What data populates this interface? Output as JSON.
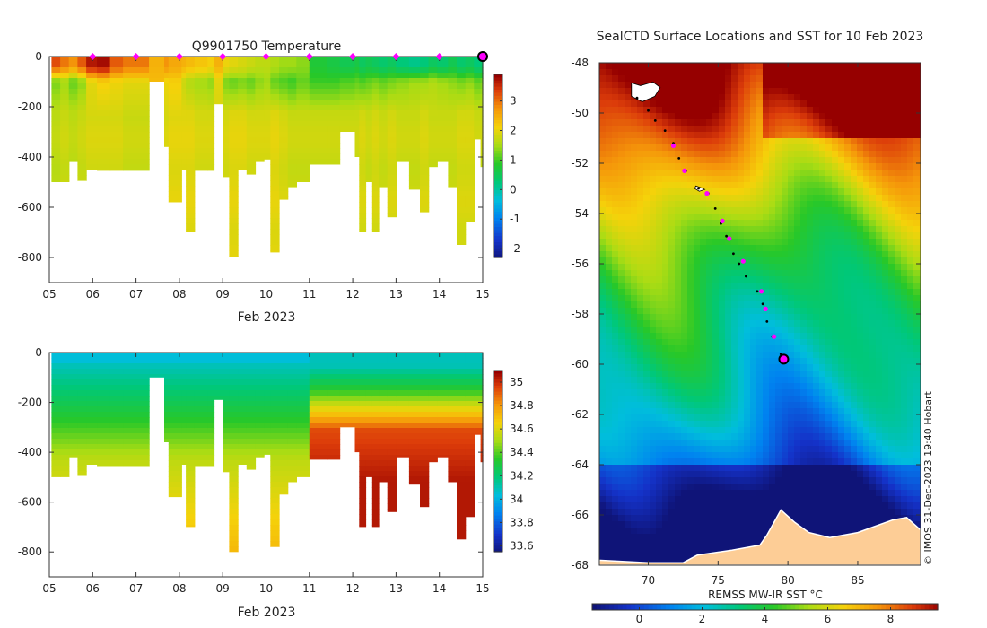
{
  "chart_data": [
    {
      "type": "heatmap",
      "panel": "temperature-section",
      "title": "Q9901750  Temperature",
      "xlabel": "Feb 2023",
      "ylabel": "",
      "x_ticks": [
        "05",
        "06",
        "07",
        "08",
        "09",
        "10",
        "11",
        "12",
        "13",
        "14",
        "15"
      ],
      "xlim": [
        5,
        15
      ],
      "y_ticks": [
        0,
        -200,
        -400,
        -600,
        -800
      ],
      "ylim": [
        -900,
        0
      ],
      "colorbar": {
        "min": -2.3,
        "max": 3.9,
        "ticks": [
          "3",
          "2",
          "1",
          "0",
          "-1",
          "-2"
        ],
        "tick_values": [
          3,
          2,
          1,
          0,
          -1,
          -2
        ]
      },
      "surface_markers_days": [
        6,
        7,
        8,
        9,
        10,
        11,
        12,
        13,
        14
      ],
      "final_marker_day": 15,
      "profiles": [
        {
          "day": 5.05,
          "maxdepth": 500,
          "top": 3.3,
          "upper": 1.3,
          "deep": 1.7
        },
        {
          "day": 5.25,
          "maxdepth": 500,
          "top": 3.0,
          "upper": 1.5,
          "deep": 1.8
        },
        {
          "day": 5.45,
          "maxdepth": 420,
          "top": 2.8,
          "upper": 1.2,
          "deep": 1.7
        },
        {
          "day": 5.65,
          "maxdepth": 495,
          "top": 3.2,
          "upper": 1.4,
          "deep": 1.8
        },
        {
          "day": 5.85,
          "maxdepth": 450,
          "top": 3.7,
          "upper": 2.0,
          "deep": 1.9
        },
        {
          "day": 6.1,
          "maxdepth": 455,
          "top": 3.8,
          "upper": 2.2,
          "deep": 1.9
        },
        {
          "day": 6.4,
          "maxdepth": 455,
          "top": 3.2,
          "upper": 2.1,
          "deep": 1.9
        },
        {
          "day": 6.7,
          "maxdepth": 455,
          "top": 3.0,
          "upper": 2.0,
          "deep": 1.8
        },
        {
          "day": 7.3,
          "maxdepth": 100,
          "top": 2.5,
          "upper": 2.4,
          "deep": 2.3
        },
        {
          "day": 7.65,
          "maxdepth": 360,
          "top": 2.8,
          "upper": 2.1,
          "deep": 1.9
        },
        {
          "day": 7.75,
          "maxdepth": 580,
          "top": 2.6,
          "upper": 2.2,
          "deep": 2.0
        },
        {
          "day": 8.05,
          "maxdepth": 450,
          "top": 2.5,
          "upper": 1.8,
          "deep": 2.0
        },
        {
          "day": 8.15,
          "maxdepth": 700,
          "top": 2.4,
          "upper": 1.6,
          "deep": 2.0
        },
        {
          "day": 8.35,
          "maxdepth": 455,
          "top": 2.3,
          "upper": 1.5,
          "deep": 1.9
        },
        {
          "day": 8.65,
          "maxdepth": 455,
          "top": 2.2,
          "upper": 1.4,
          "deep": 1.9
        },
        {
          "day": 8.8,
          "maxdepth": 190,
          "top": 2.5,
          "upper": 2.0,
          "deep": 1.9
        },
        {
          "day": 9.0,
          "maxdepth": 480,
          "top": 2.1,
          "upper": 1.3,
          "deep": 1.9
        },
        {
          "day": 9.15,
          "maxdepth": 800,
          "top": 2.0,
          "upper": 1.2,
          "deep": 2.0
        },
        {
          "day": 9.35,
          "maxdepth": 450,
          "top": 1.9,
          "upper": 1.3,
          "deep": 2.0
        },
        {
          "day": 9.55,
          "maxdepth": 470,
          "top": 1.8,
          "upper": 1.2,
          "deep": 1.9
        },
        {
          "day": 9.75,
          "maxdepth": 420,
          "top": 1.7,
          "upper": 1.4,
          "deep": 1.9
        },
        {
          "day": 9.95,
          "maxdepth": 410,
          "top": 1.7,
          "upper": 1.5,
          "deep": 1.9
        },
        {
          "day": 10.1,
          "maxdepth": 780,
          "top": 1.6,
          "upper": 1.2,
          "deep": 2.0
        },
        {
          "day": 10.3,
          "maxdepth": 570,
          "top": 1.5,
          "upper": 1.1,
          "deep": 1.9
        },
        {
          "day": 10.5,
          "maxdepth": 520,
          "top": 1.5,
          "upper": 1.0,
          "deep": 1.8
        },
        {
          "day": 10.7,
          "maxdepth": 500,
          "top": 1.4,
          "upper": 1.2,
          "deep": 1.8
        },
        {
          "day": 11.0,
          "maxdepth": 430,
          "top": 0.8,
          "upper": 1.0,
          "deep": 1.8
        },
        {
          "day": 11.4,
          "maxdepth": 430,
          "top": 0.7,
          "upper": 1.0,
          "deep": 1.8
        },
        {
          "day": 11.7,
          "maxdepth": 300,
          "top": 0.6,
          "upper": 1.1,
          "deep": 1.8
        },
        {
          "day": 12.05,
          "maxdepth": 400,
          "top": 0.7,
          "upper": 1.2,
          "deep": 1.8
        },
        {
          "day": 12.15,
          "maxdepth": 700,
          "top": 0.5,
          "upper": 1.1,
          "deep": 1.9
        },
        {
          "day": 12.3,
          "maxdepth": 500,
          "top": 0.6,
          "upper": 1.2,
          "deep": 1.8
        },
        {
          "day": 12.45,
          "maxdepth": 700,
          "top": 0.5,
          "upper": 1.3,
          "deep": 1.9
        },
        {
          "day": 12.6,
          "maxdepth": 520,
          "top": 0.4,
          "upper": 1.2,
          "deep": 1.8
        },
        {
          "day": 12.8,
          "maxdepth": 640,
          "top": 0.5,
          "upper": 1.3,
          "deep": 1.9
        },
        {
          "day": 13.0,
          "maxdepth": 420,
          "top": 0.3,
          "upper": 1.4,
          "deep": 1.8
        },
        {
          "day": 13.3,
          "maxdepth": 530,
          "top": 0.2,
          "upper": 1.5,
          "deep": 1.8
        },
        {
          "day": 13.55,
          "maxdepth": 620,
          "top": 0.3,
          "upper": 1.5,
          "deep": 1.9
        },
        {
          "day": 13.75,
          "maxdepth": 440,
          "top": 0.5,
          "upper": 1.6,
          "deep": 1.8
        },
        {
          "day": 13.95,
          "maxdepth": 420,
          "top": 0.4,
          "upper": 1.5,
          "deep": 1.8
        },
        {
          "day": 14.2,
          "maxdepth": 520,
          "top": 0.6,
          "upper": 1.4,
          "deep": 1.8
        },
        {
          "day": 14.4,
          "maxdepth": 750,
          "top": 0.4,
          "upper": 1.3,
          "deep": 1.9
        },
        {
          "day": 14.6,
          "maxdepth": 660,
          "top": 0.5,
          "upper": 1.4,
          "deep": 1.9
        },
        {
          "day": 14.8,
          "maxdepth": 330,
          "top": 0.3,
          "upper": 1.2,
          "deep": 1.8
        },
        {
          "day": 14.95,
          "maxdepth": 440,
          "top": 0.4,
          "upper": 1.3,
          "deep": 1.8
        }
      ]
    },
    {
      "type": "heatmap",
      "panel": "salinity-section",
      "title": "",
      "xlabel": "Feb 2023",
      "x_ticks": [
        "05",
        "06",
        "07",
        "08",
        "09",
        "10",
        "11",
        "12",
        "13",
        "14",
        "15"
      ],
      "xlim": [
        5,
        15
      ],
      "y_ticks": [
        0,
        -200,
        -400,
        -600,
        -800
      ],
      "ylim": [
        -900,
        0
      ],
      "colorbar": {
        "min": 33.55,
        "max": 35.1,
        "ticks": [
          "35",
          "34.8",
          "34.6",
          "34.4",
          "34.2",
          "34",
          "33.8",
          "33.6"
        ],
        "tick_values": [
          35,
          34.8,
          34.6,
          34.4,
          34.2,
          34,
          33.8,
          33.6
        ]
      },
      "profiles_note": "same profile positions and depths as the temperature section"
    },
    {
      "type": "heatmap",
      "panel": "sst-map",
      "title": "SealCTD Surface Locations and SST for 10 Feb 2023",
      "xlabel": "REMSS MW-IR SST °C",
      "x_ticks": [
        "70",
        "75",
        "80",
        "85"
      ],
      "x_tick_values": [
        70,
        75,
        80,
        85
      ],
      "xlim": [
        66.5,
        89.5
      ],
      "y_ticks": [
        "-48",
        "-50",
        "-52",
        "-54",
        "-56",
        "-58",
        "-60",
        "-62",
        "-64",
        "-66",
        "-68"
      ],
      "y_tick_values": [
        -48,
        -50,
        -52,
        -54,
        -56,
        -58,
        -60,
        -62,
        -64,
        -66,
        -68
      ],
      "ylim": [
        -68,
        -48
      ],
      "colorbar": {
        "min": -1.5,
        "max": 9.5,
        "ticks": [
          "0",
          "2",
          "4",
          "6",
          "8"
        ],
        "tick_values": [
          0,
          2,
          4,
          6,
          8
        ]
      },
      "track": [
        {
          "lon": 69.2,
          "lat": -49.4
        },
        {
          "lon": 70.0,
          "lat": -49.9
        },
        {
          "lon": 70.5,
          "lat": -50.3
        },
        {
          "lon": 71.2,
          "lat": -50.7
        },
        {
          "lon": 71.8,
          "lat": -51.2
        },
        {
          "lon": 72.2,
          "lat": -51.8
        },
        {
          "lon": 72.7,
          "lat": -52.3
        },
        {
          "lon": 73.6,
          "lat": -53.0
        },
        {
          "lon": 74.3,
          "lat": -53.2
        },
        {
          "lon": 74.8,
          "lat": -53.8
        },
        {
          "lon": 75.2,
          "lat": -54.4
        },
        {
          "lon": 75.6,
          "lat": -54.9
        },
        {
          "lon": 76.1,
          "lat": -55.6
        },
        {
          "lon": 76.5,
          "lat": -56.0
        },
        {
          "lon": 77.0,
          "lat": -56.5
        },
        {
          "lon": 77.8,
          "lat": -57.1
        },
        {
          "lon": 78.2,
          "lat": -57.6
        },
        {
          "lon": 78.5,
          "lat": -58.3
        },
        {
          "lon": 78.9,
          "lat": -58.9
        },
        {
          "lon": 79.5,
          "lat": -59.6
        },
        {
          "lon": 79.7,
          "lat": -59.8
        }
      ],
      "daily_positions": [
        {
          "lon": 71.8,
          "lat": -51.3
        },
        {
          "lon": 72.6,
          "lat": -52.3
        },
        {
          "lon": 74.2,
          "lat": -53.2
        },
        {
          "lon": 75.3,
          "lat": -54.3
        },
        {
          "lon": 75.8,
          "lat": -55.0
        },
        {
          "lon": 76.8,
          "lat": -55.9
        },
        {
          "lon": 78.1,
          "lat": -57.1
        },
        {
          "lon": 78.4,
          "lat": -57.8
        },
        {
          "lon": 79.0,
          "lat": -58.9
        }
      ],
      "current_position": {
        "lon": 79.7,
        "lat": -59.8
      }
    }
  ],
  "credit": "© IMOS 31-Dec-2023 19:40 Hobart",
  "colors": {
    "background": "#ffffff",
    "land": "#fdcd96",
    "marker": "#ff00ff",
    "current_ring": "#000000"
  }
}
